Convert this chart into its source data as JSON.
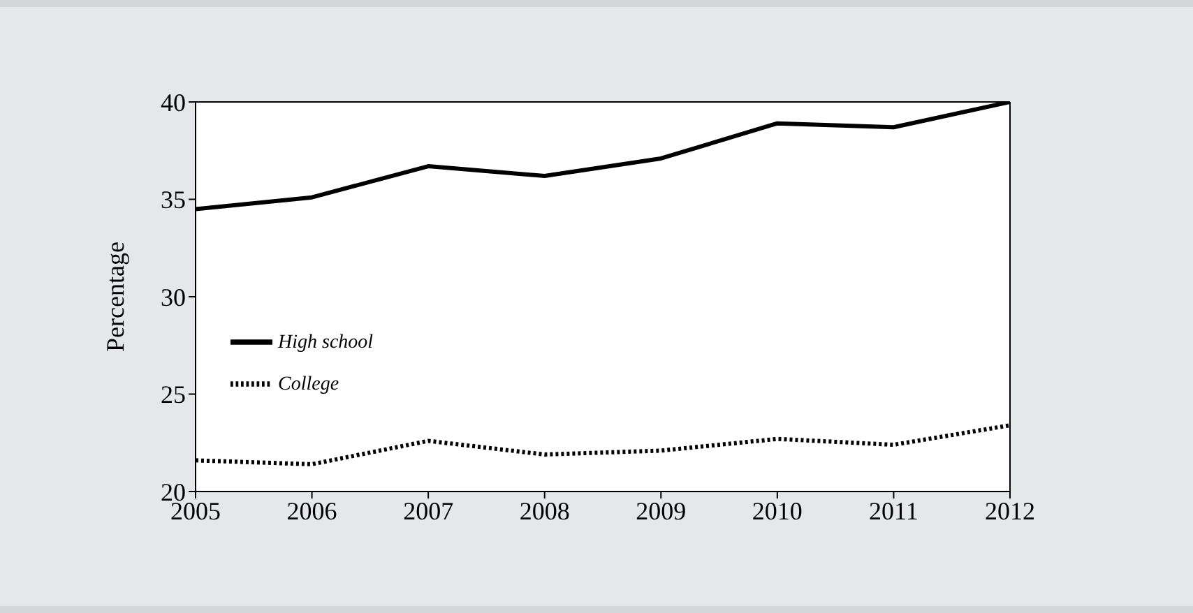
{
  "chart_data": {
    "type": "line",
    "ylabel": "Percentage",
    "x": [
      2005,
      2006,
      2007,
      2008,
      2009,
      2010,
      2011,
      2012
    ],
    "xlim": [
      2005,
      2012
    ],
    "xticks": [
      2005,
      2006,
      2007,
      2008,
      2009,
      2010,
      2011,
      2012
    ],
    "ylim": [
      20,
      40
    ],
    "yticks": [
      20,
      25,
      30,
      35,
      40
    ],
    "grid": false,
    "legend": "left",
    "marker": "none",
    "series": [
      {
        "name": "High school",
        "color": "#000000",
        "line_style": "solid",
        "values": [
          34.5,
          35.1,
          36.7,
          36.2,
          37.1,
          38.9,
          38.7,
          40
        ]
      },
      {
        "name": "College",
        "color": "#000000",
        "line_style": "dotted",
        "values": [
          21.6,
          21.4,
          22.6,
          21.9,
          22.1,
          22.7,
          22.4,
          23.4
        ]
      }
    ]
  }
}
